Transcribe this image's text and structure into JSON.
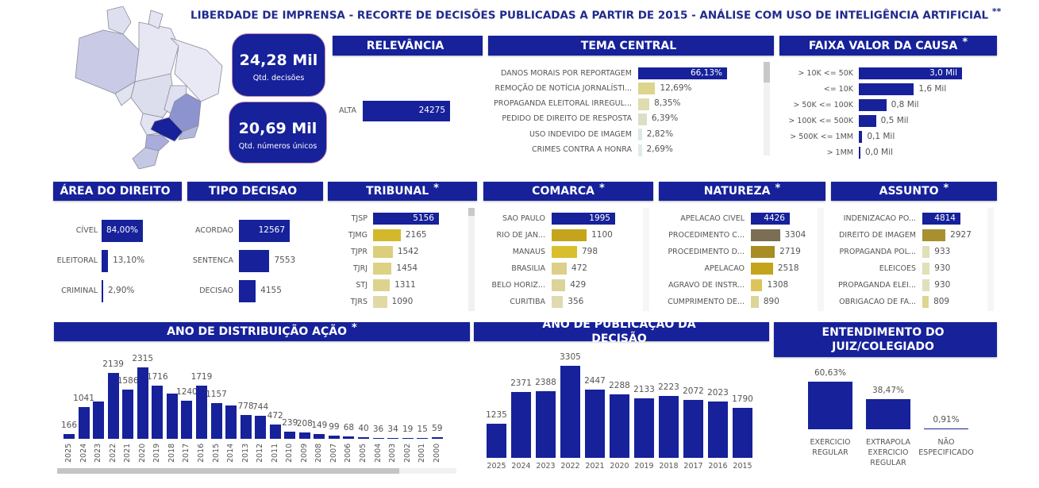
{
  "title": "LIBERDADE DE IMPRENSA - RECORTE DE DECISÕES PUBLICADAS A PARTIR DE 2015 - ANÁLISE COM USO DE INTELIGÊNCIA ARTIFICIAL",
  "title_mark": "**",
  "colors": {
    "primary": "#16219a",
    "kpi_border": "#c58aa5"
  },
  "map": {
    "highlight_state": "SP",
    "secondary_state": "MG"
  },
  "kpis": [
    {
      "value": "24,28 Mil",
      "label": "Qtd. decisões"
    },
    {
      "value": "20,69 Mil",
      "label": "Qtd. números únicos"
    }
  ],
  "panels": {
    "relevancia": {
      "title": "RELEVÂNCIA",
      "star": "",
      "items": [
        {
          "label": "ALTA",
          "value": 24275,
          "text": "24275",
          "color": "#16219a"
        }
      ]
    },
    "tema": {
      "title": "TEMA CENTRAL",
      "star": "",
      "items": [
        {
          "label": "DANOS MORAIS POR REPORTAGEM",
          "value": 66.13,
          "text": "66,13%",
          "color": "#16219a"
        },
        {
          "label": "REMOÇÃO DE NOTÍCIA JORNALÍSTI...",
          "value": 12.69,
          "text": "12,69%",
          "color": "#ddd48e"
        },
        {
          "label": "PROPAGANDA ELEITORAL IRREGUL...",
          "value": 8.35,
          "text": "8,35%",
          "color": "#dfdcb0"
        },
        {
          "label": "PEDIDO DE DIREITO DE RESPOSTA",
          "value": 6.39,
          "text": "6,39%",
          "color": "#dcdfc8"
        },
        {
          "label": "USO INDEVIDO DE IMAGEM",
          "value": 2.82,
          "text": "2,82%",
          "color": "#dde8e8"
        },
        {
          "label": "CRIMES CONTRA A HONRA",
          "value": 2.69,
          "text": "2,69%",
          "color": "#e0eaea"
        }
      ]
    },
    "faixa": {
      "title": "FAIXA VALOR DA CAUSA",
      "star": "*",
      "items": [
        {
          "label": "> 10K <= 50K",
          "value": 3.0,
          "text": "3,0 Mil",
          "color": "#16219a"
        },
        {
          "label": "<= 10K",
          "value": 1.6,
          "text": "1,6 Mil",
          "color": "#16219a"
        },
        {
          "label": "> 50K <= 100K",
          "value": 0.8,
          "text": "0,8 Mil",
          "color": "#16219a"
        },
        {
          "label": "> 100K <= 500K",
          "value": 0.5,
          "text": "0,5 Mil",
          "color": "#16219a"
        },
        {
          "label": "> 500K <= 1MM",
          "value": 0.1,
          "text": "0,1 Mil",
          "color": "#16219a"
        },
        {
          "label": "> 1MM",
          "value": 0.04,
          "text": "0,0 Mil",
          "color": "#16219a"
        }
      ]
    },
    "area": {
      "title": "ÁREA DO DIREITO",
      "star": "",
      "items": [
        {
          "label": "CÍVEL",
          "value": 84.0,
          "text": "84,00%",
          "color": "#16219a"
        },
        {
          "label": "ELEITORAL",
          "value": 13.1,
          "text": "13,10%",
          "color": "#16219a"
        },
        {
          "label": "CRIMINAL",
          "value": 2.9,
          "text": "2,90%",
          "color": "#16219a"
        }
      ]
    },
    "tipo": {
      "title": "TIPO DECISAO",
      "star": "",
      "items": [
        {
          "label": "ACORDAO",
          "value": 12567,
          "text": "12567",
          "color": "#16219a"
        },
        {
          "label": "SENTENCA",
          "value": 7553,
          "text": "7553",
          "color": "#16219a"
        },
        {
          "label": "DECISAO",
          "value": 4155,
          "text": "4155",
          "color": "#16219a"
        }
      ]
    },
    "tribunal": {
      "title": "TRIBUNAL",
      "star": "*",
      "items": [
        {
          "label": "TJSP",
          "value": 5156,
          "text": "5156",
          "color": "#16219a"
        },
        {
          "label": "TJMG",
          "value": 2165,
          "text": "2165",
          "color": "#d4b82c"
        },
        {
          "label": "TJPR",
          "value": 1542,
          "text": "1542",
          "color": "#dccf7c"
        },
        {
          "label": "TJRJ",
          "value": 1454,
          "text": "1454",
          "color": "#ddd184"
        },
        {
          "label": "STJ",
          "value": 1311,
          "text": "1311",
          "color": "#dcd38f"
        },
        {
          "label": "TJRS",
          "value": 1090,
          "text": "1090",
          "color": "#e0d9a6"
        }
      ]
    },
    "comarca": {
      "title": "COMARCA",
      "star": "*",
      "items": [
        {
          "label": "SAO PAULO",
          "value": 1995,
          "text": "1995",
          "color": "#16219a"
        },
        {
          "label": "RIO DE JAN...",
          "value": 1100,
          "text": "1100",
          "color": "#c4a41a"
        },
        {
          "label": "MANAUS",
          "value": 798,
          "text": "798",
          "color": "#d9bf2e"
        },
        {
          "label": "BRASILIA",
          "value": 472,
          "text": "472",
          "color": "#dccf8a"
        },
        {
          "label": "BELO HORIZ...",
          "value": 429,
          "text": "429",
          "color": "#dcd39a"
        },
        {
          "label": "CURITIBA",
          "value": 356,
          "text": "356",
          "color": "#e0dab0"
        }
      ]
    },
    "natureza": {
      "title": "NATUREZA",
      "star": "*",
      "items": [
        {
          "label": "APELACAO CIVEL",
          "value": 4426,
          "text": "4426",
          "color": "#16219a"
        },
        {
          "label": "PROCEDIMENTO C...",
          "value": 3304,
          "text": "3304",
          "color": "#7a6e55"
        },
        {
          "label": "PROCEDIMENTO D...",
          "value": 2719,
          "text": "2719",
          "color": "#a88c24"
        },
        {
          "label": "APELACAO",
          "value": 2518,
          "text": "2518",
          "color": "#c4a41a"
        },
        {
          "label": "AGRAVO DE INSTR...",
          "value": 1308,
          "text": "1308",
          "color": "#dcc45a"
        },
        {
          "label": "CUMPRIMENTO DE...",
          "value": 890,
          "text": "890",
          "color": "#dcd59a"
        }
      ]
    },
    "assunto": {
      "title": "ASSUNTO",
      "star": "*",
      "items": [
        {
          "label": "INDENIZACAO PO...",
          "value": 4814,
          "text": "4814",
          "color": "#16219a"
        },
        {
          "label": "DIREITO DE IMAGEM",
          "value": 2927,
          "text": "2927",
          "color": "#a89030"
        },
        {
          "label": "PROPAGANDA POL...",
          "value": 933,
          "text": "933",
          "color": "#dfe0b8"
        },
        {
          "label": "ELEICOES",
          "value": 930,
          "text": "930",
          "color": "#e0e0ba"
        },
        {
          "label": "PROPAGANDA ELEI...",
          "value": 930,
          "text": "930",
          "color": "#e0e0bc"
        },
        {
          "label": "OBRIGACAO DE FA...",
          "value": 809,
          "text": "809",
          "color": "#dcd690"
        }
      ]
    }
  },
  "chart_data": [
    {
      "type": "bar",
      "title": "ANO DE DISTRIBUIÇÃO AÇÃO",
      "star": "*",
      "categories": [
        "2025",
        "2024",
        "2023",
        "2022",
        "2021",
        "2020",
        "2019",
        "2018",
        "2017",
        "2016",
        "2015",
        "2014",
        "2013",
        "2012",
        "2011",
        "2010",
        "2009",
        "2008",
        "2007",
        "2006",
        "2005",
        "2004",
        "2003",
        "2002",
        "2001",
        "2000"
      ],
      "values": [
        166,
        1041,
        null,
        2139,
        1586,
        2315,
        1716,
        null,
        1240,
        1719,
        1157,
        null,
        778,
        744,
        472,
        239,
        208,
        149,
        99,
        68,
        40,
        36,
        34,
        19,
        15,
        59
      ],
      "labels": [
        "166",
        "1041",
        "",
        "2139",
        "1586",
        "2315",
        "1716",
        "",
        "1240",
        "1719",
        "1157",
        "",
        "778",
        "744",
        "472",
        "239",
        "208",
        "149",
        "99",
        "68",
        "40",
        "36",
        "34",
        "19",
        "15",
        "59"
      ],
      "approx_unlabeled": {
        "2023": 1200,
        "2018": 1460,
        "2014": 1080
      },
      "color": "#16219a",
      "grid": false,
      "horizontal_scrollbar": true
    },
    {
      "type": "bar",
      "title": "ANO DE PUBLICAÇÃO DA DECISÃO",
      "star": "",
      "categories": [
        "2025",
        "2024",
        "2023",
        "2022",
        "2021",
        "2020",
        "2019",
        "2018",
        "2017",
        "2016",
        "2015"
      ],
      "values": [
        1235,
        2371,
        2388,
        3305,
        2447,
        2288,
        2133,
        2223,
        2072,
        2023,
        1790
      ],
      "labels": [
        "1235",
        "2371",
        "2388",
        "3305",
        "2447",
        "2288",
        "2133",
        "2223",
        "2072",
        "2023",
        "1790"
      ],
      "color": "#16219a",
      "grid": false
    },
    {
      "type": "bar",
      "title": "ENTENDIMENTO DO JUIZ/COLEGIADO",
      "star": "",
      "categories": [
        "EXERCICIO REGULAR",
        "EXTRAPOLA EXERCICIO REGULAR",
        "NÃO ESPECIFICADO"
      ],
      "values": [
        60.63,
        38.47,
        0.91
      ],
      "labels": [
        "60,63%",
        "38,47%",
        "0,91%"
      ],
      "color": "#16219a",
      "grid": false
    }
  ]
}
